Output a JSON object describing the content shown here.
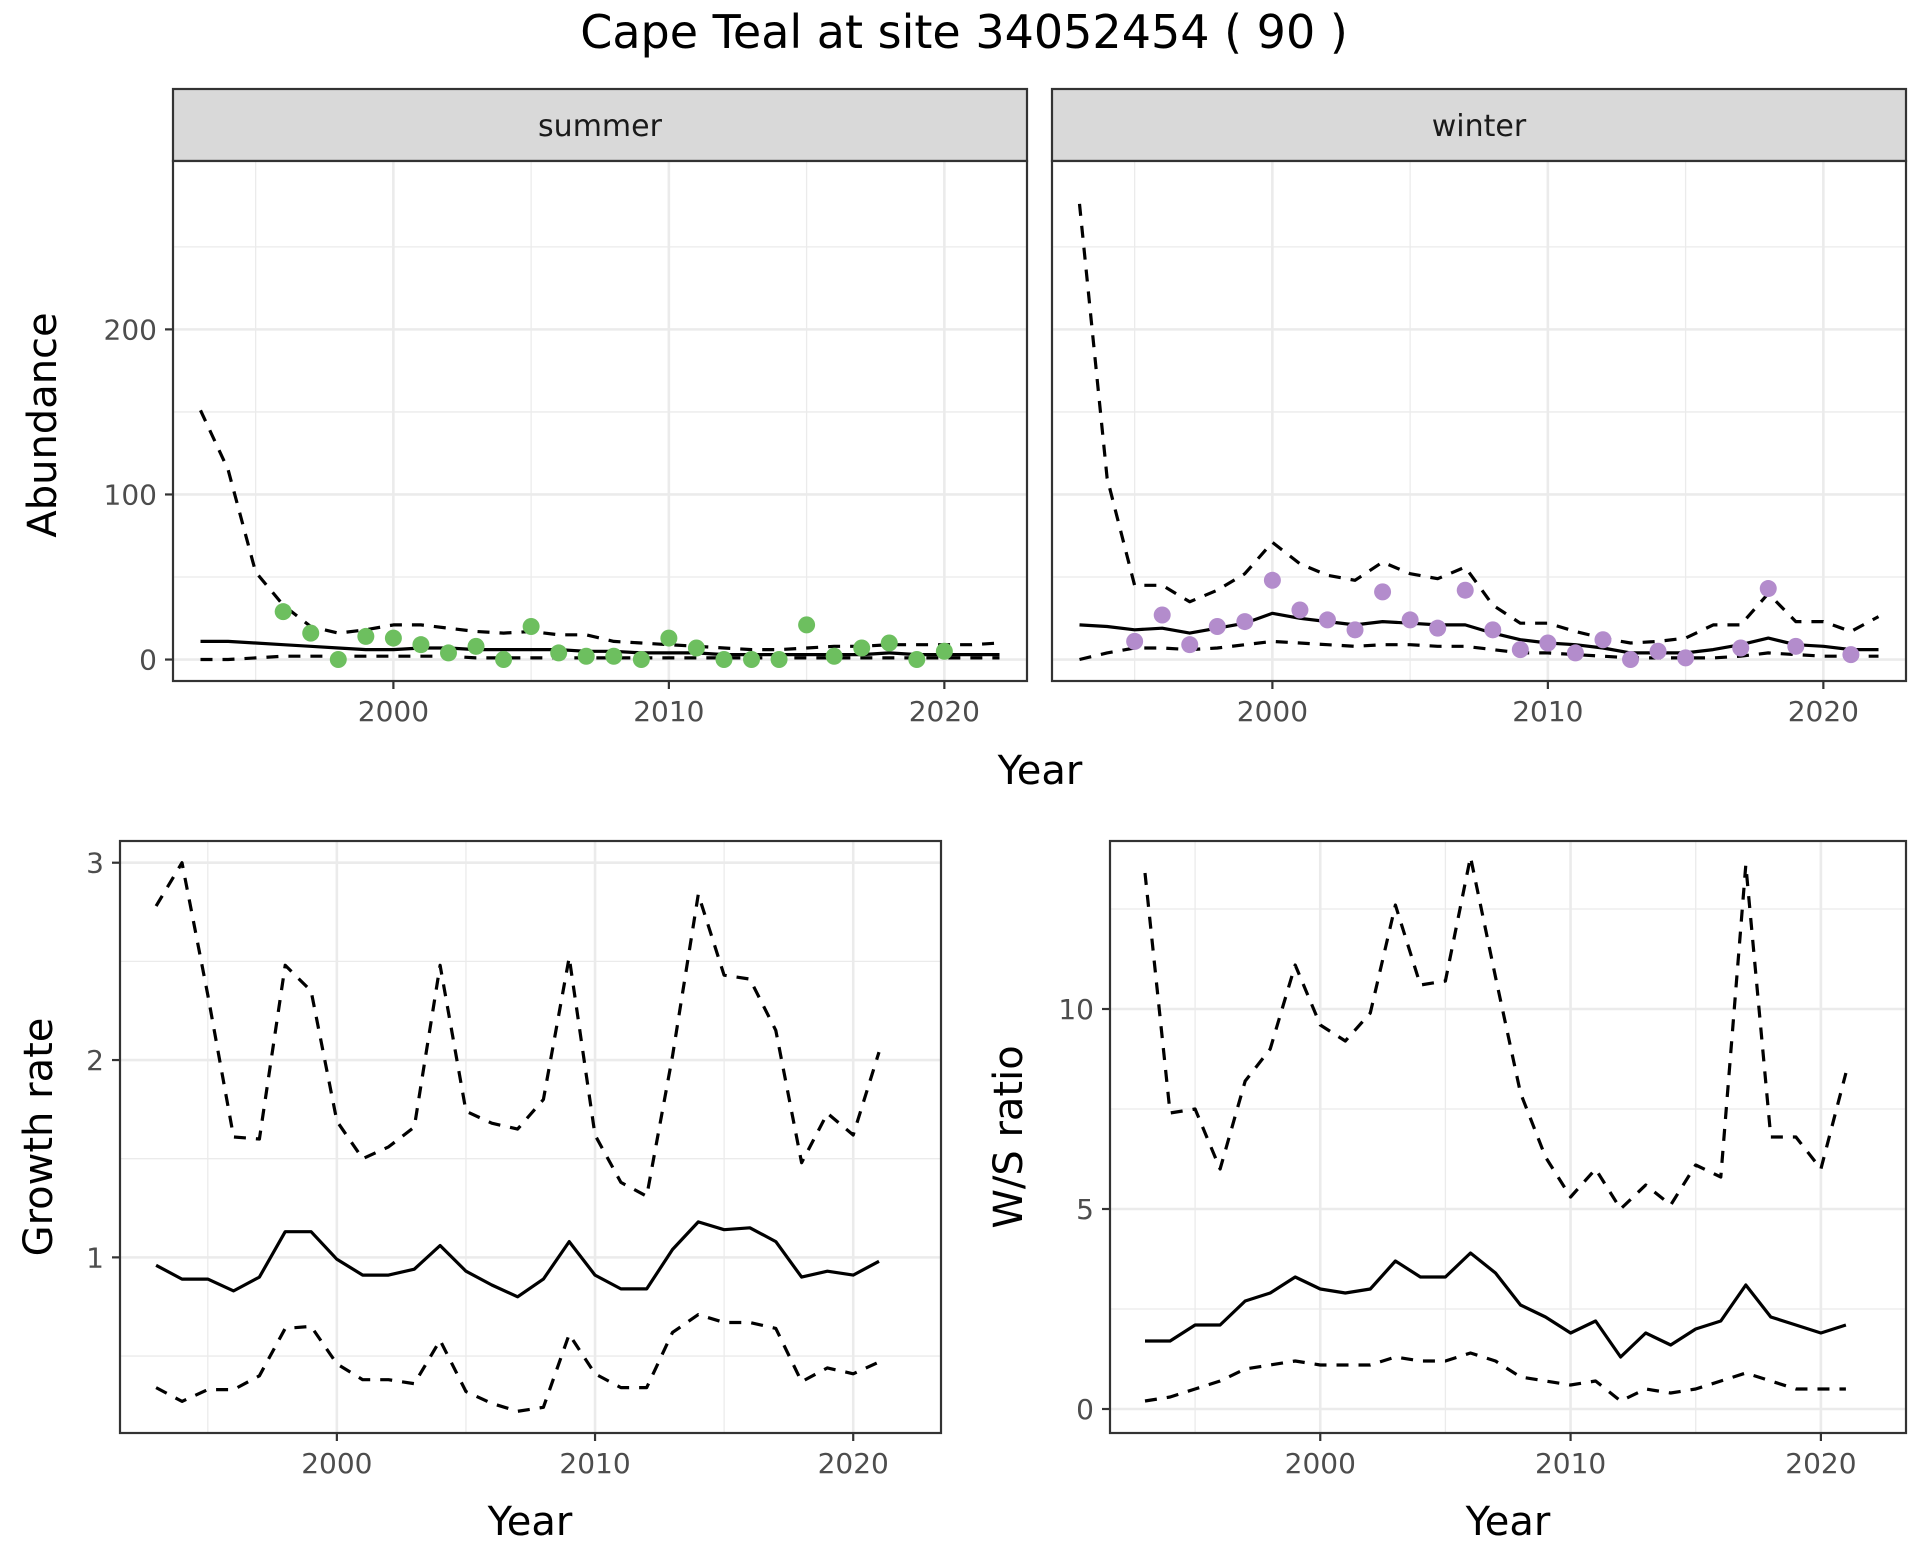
{
  "title": "Cape Teal at site 34052454 ( 90 )",
  "colors": {
    "summer_points": "#6dbf5f",
    "winter_points": "#b38ccc",
    "lines": "#000000",
    "strip_fill": "#d9d9d9",
    "grid": "#ebebeb"
  },
  "chart_data": [
    {
      "type": "line",
      "panel": "abundance",
      "facets": [
        "summer",
        "winter"
      ],
      "ylabel": "Abundance",
      "xlabel": "Year",
      "xlim": [
        1992,
        2023
      ],
      "ylim": [
        -13,
        302
      ],
      "x_ticks": [
        2000,
        2010,
        2020
      ],
      "y_ticks": [
        0,
        100,
        200
      ],
      "grid": true,
      "summer": {
        "x": [
          1993,
          1994,
          1995,
          1996,
          1997,
          1998,
          1999,
          2000,
          2001,
          2002,
          2003,
          2004,
          2005,
          2006,
          2007,
          2008,
          2009,
          2010,
          2011,
          2012,
          2013,
          2014,
          2015,
          2016,
          2017,
          2018,
          2019,
          2020,
          2021,
          2022
        ],
        "mean": [
          11,
          11,
          10,
          9,
          8,
          7,
          6,
          6,
          7,
          7,
          6,
          6,
          6,
          6,
          5,
          5,
          4,
          4,
          4,
          3,
          3,
          3,
          3,
          3,
          3,
          4,
          3,
          3,
          3,
          3
        ],
        "upper": [
          151,
          115,
          53,
          33,
          20,
          16,
          18,
          21,
          21,
          19,
          17,
          16,
          17,
          15,
          15,
          11,
          10,
          9,
          8,
          7,
          6,
          6,
          7,
          8,
          8,
          9,
          9,
          9,
          9,
          10
        ],
        "lower": [
          0,
          0,
          1,
          2,
          2,
          2,
          2,
          2,
          2,
          2,
          1,
          1,
          1,
          1,
          1,
          1,
          1,
          1,
          1,
          1,
          1,
          1,
          1,
          1,
          1,
          1,
          1,
          1,
          1,
          1
        ],
        "points_x": [
          1996,
          1997,
          1998,
          1999,
          2000,
          2001,
          2002,
          2003,
          2004,
          2005,
          2006,
          2007,
          2008,
          2009,
          2010,
          2011,
          2012,
          2013,
          2014,
          2015,
          2016,
          2017,
          2018,
          2019,
          2020
        ],
        "points_y": [
          29,
          16,
          0,
          14,
          13,
          9,
          4,
          8,
          0,
          20,
          4,
          2,
          2,
          0,
          13,
          7,
          0,
          0,
          0,
          21,
          2,
          7,
          10,
          0,
          5
        ]
      },
      "winter": {
        "x": [
          1993,
          1994,
          1995,
          1996,
          1997,
          1998,
          1999,
          2000,
          2001,
          2002,
          2003,
          2004,
          2005,
          2006,
          2007,
          2008,
          2009,
          2010,
          2011,
          2012,
          2013,
          2014,
          2015,
          2016,
          2017,
          2018,
          2019,
          2020,
          2021,
          2022
        ],
        "mean": [
          21,
          20,
          18,
          19,
          16,
          19,
          22,
          28,
          25,
          23,
          21,
          23,
          22,
          21,
          21,
          16,
          12,
          10,
          9,
          7,
          4,
          4,
          4,
          6,
          9,
          13,
          9,
          8,
          6,
          6
        ],
        "upper": [
          276,
          110,
          45,
          45,
          35,
          42,
          52,
          71,
          58,
          51,
          48,
          59,
          52,
          49,
          56,
          33,
          22,
          22,
          17,
          13,
          10,
          11,
          13,
          21,
          21,
          40,
          23,
          23,
          17,
          26
        ],
        "lower": [
          0,
          4,
          7,
          7,
          6,
          7,
          9,
          11,
          10,
          9,
          8,
          9,
          9,
          8,
          8,
          6,
          4,
          4,
          3,
          2,
          1,
          1,
          1,
          1,
          2,
          4,
          3,
          2,
          2,
          2
        ],
        "points_x": [
          1995,
          1996,
          1997,
          1998,
          1999,
          2000,
          2001,
          2002,
          2003,
          2004,
          2005,
          2006,
          2007,
          2008,
          2009,
          2010,
          2011,
          2012,
          2013,
          2014,
          2015,
          2017,
          2018,
          2019,
          2021
        ],
        "points_y": [
          11,
          27,
          9,
          20,
          23,
          48,
          30,
          24,
          18,
          41,
          24,
          19,
          42,
          18,
          6,
          10,
          4,
          12,
          0,
          5,
          1,
          7,
          43,
          8,
          3
        ]
      }
    },
    {
      "type": "line",
      "panel": "growth",
      "ylabel": "Growth rate",
      "xlabel": "Year",
      "xlim": [
        1991.6,
        2023.4
      ],
      "ylim": [
        0.11,
        3.11
      ],
      "x_ticks": [
        2000,
        2010,
        2020
      ],
      "y_ticks": [
        1,
        2,
        3
      ],
      "grid": true,
      "x": [
        1993,
        1994,
        1995,
        1996,
        1997,
        1998,
        1999,
        2000,
        2001,
        2002,
        2003,
        2004,
        2005,
        2006,
        2007,
        2008,
        2009,
        2010,
        2011,
        2012,
        2013,
        2014,
        2015,
        2016,
        2017,
        2018,
        2019,
        2020,
        2021
      ],
      "mean": [
        0.96,
        0.89,
        0.89,
        0.83,
        0.9,
        1.13,
        1.13,
        0.99,
        0.91,
        0.91,
        0.94,
        1.06,
        0.93,
        0.86,
        0.8,
        0.89,
        1.08,
        0.91,
        0.84,
        0.84,
        1.04,
        1.18,
        1.14,
        1.15,
        1.08,
        0.9,
        0.93,
        0.91,
        0.98
      ],
      "upper": [
        2.78,
        3.0,
        2.33,
        1.61,
        1.6,
        2.48,
        2.35,
        1.69,
        1.5,
        1.56,
        1.66,
        2.48,
        1.74,
        1.68,
        1.65,
        1.8,
        2.52,
        1.62,
        1.38,
        1.31,
        2.02,
        2.84,
        2.43,
        2.41,
        2.15,
        1.48,
        1.73,
        1.62,
        2.04
      ],
      "lower": [
        0.34,
        0.27,
        0.33,
        0.33,
        0.4,
        0.64,
        0.65,
        0.46,
        0.38,
        0.38,
        0.36,
        0.58,
        0.32,
        0.26,
        0.22,
        0.24,
        0.61,
        0.41,
        0.34,
        0.34,
        0.62,
        0.71,
        0.67,
        0.67,
        0.64,
        0.37,
        0.44,
        0.41,
        0.47
      ]
    },
    {
      "type": "line",
      "panel": "ratio",
      "ylabel": "W/S ratio",
      "xlabel": "Year",
      "xlim": [
        1991.6,
        2023.4
      ],
      "ylim": [
        -0.6,
        14.2
      ],
      "x_ticks": [
        2000,
        2010,
        2020
      ],
      "y_ticks": [
        0,
        5,
        10
      ],
      "grid": true,
      "x": [
        1993,
        1994,
        1995,
        1996,
        1997,
        1998,
        1999,
        2000,
        2001,
        2002,
        2003,
        2004,
        2005,
        2006,
        2007,
        2008,
        2009,
        2010,
        2011,
        2012,
        2013,
        2014,
        2015,
        2016,
        2017,
        2018,
        2019,
        2020,
        2021
      ],
      "mean": [
        1.7,
        1.7,
        2.1,
        2.1,
        2.7,
        2.9,
        3.3,
        3.0,
        2.9,
        3.0,
        3.7,
        3.3,
        3.3,
        3.9,
        3.4,
        2.6,
        2.3,
        1.9,
        2.2,
        1.3,
        1.9,
        1.6,
        2.0,
        2.2,
        3.1,
        2.3,
        2.1,
        1.9,
        2.1
      ],
      "upper": [
        13.4,
        7.4,
        7.5,
        6.0,
        8.2,
        9.0,
        11.1,
        9.6,
        9.2,
        9.9,
        12.6,
        10.6,
        10.7,
        13.8,
        10.8,
        7.9,
        6.3,
        5.3,
        6.0,
        5.0,
        5.6,
        5.1,
        6.1,
        5.8,
        13.6,
        6.8,
        6.8,
        6.0,
        8.4
      ],
      "lower": [
        0.2,
        0.3,
        0.5,
        0.7,
        1.0,
        1.1,
        1.2,
        1.1,
        1.1,
        1.1,
        1.3,
        1.2,
        1.2,
        1.4,
        1.2,
        0.8,
        0.7,
        0.6,
        0.7,
        0.2,
        0.5,
        0.4,
        0.5,
        0.7,
        0.9,
        0.7,
        0.5,
        0.5,
        0.5
      ]
    }
  ]
}
